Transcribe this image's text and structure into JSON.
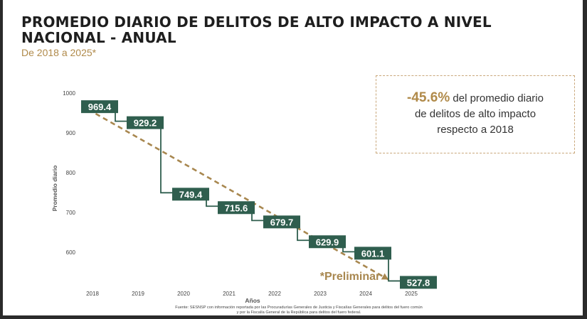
{
  "header": {
    "title": "PROMEDIO DIARIO DE DELITOS DE ALTO IMPACTO A NIVEL NACIONAL - ANUAL",
    "subtitle": "De 2018 a 2025*"
  },
  "callout": {
    "percent": "-45.6%",
    "text_line1": "del promedio diario",
    "text_line2": "de delitos de alto impacto",
    "text_line3": "respecto a 2018"
  },
  "source": {
    "line1": "Fuente: SESNSP con información reportada por las Procuradurías Generales de Justicia y Fiscalías Generales para delitos del fuero común",
    "line2": "y por la Fiscalía General de la República para delitos del fuero federal."
  },
  "chart_data": {
    "type": "line",
    "style": "step",
    "x": [
      "2018",
      "2019",
      "2020",
      "2021",
      "2022",
      "2023",
      "2024",
      "2025"
    ],
    "values": [
      969.4,
      929.2,
      749.4,
      715.6,
      679.7,
      629.9,
      601.1,
      527.8
    ],
    "value_labels": [
      "969.4",
      "929.2",
      "749.4",
      "715.6",
      "679.7",
      "629.9",
      "601.1",
      "527.8"
    ],
    "xlabel": "Años",
    "ylabel": "Promedio diario",
    "yticks": [
      "1000",
      "900",
      "800",
      "700",
      "600"
    ],
    "ylim": [
      500,
      1000
    ],
    "trend_label": "*Preliminar",
    "grid": false,
    "colors": {
      "line": "#2f5e4e",
      "label_bg": "#2f5e4e",
      "label_text": "#ffffff",
      "trend": "#a8874f"
    }
  }
}
